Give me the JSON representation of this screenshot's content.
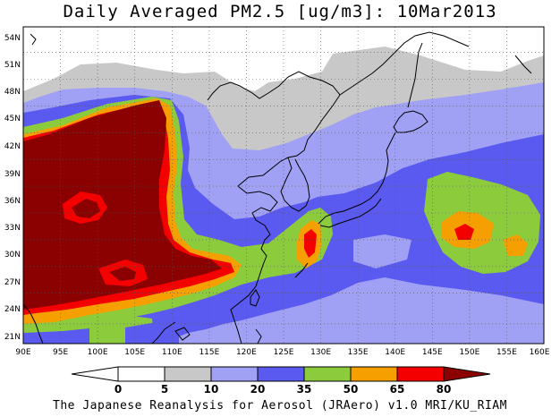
{
  "title": "Daily Averaged PM2.5 [ug/m3]: 10Mar2013",
  "footer": "The Japanese Reanalysis for Aerosol (JRAero) v1.0 MRI/KU_RIAM",
  "map": {
    "lon_range": [
      90,
      160
    ],
    "lat_range": [
      19.5,
      55
    ],
    "lon_ticks": [
      "90E",
      "95E",
      "100E",
      "105E",
      "110E",
      "115E",
      "120E",
      "125E",
      "130E",
      "135E",
      "140E",
      "145E",
      "150E",
      "155E",
      "160E"
    ],
    "lat_ticks": [
      "21N",
      "24N",
      "27N",
      "30N",
      "33N",
      "36N",
      "39N",
      "42N",
      "45N",
      "48N",
      "51N",
      "54N"
    ]
  },
  "colorbar": {
    "labels": [
      "0",
      "5",
      "10",
      "20",
      "35",
      "50",
      "65",
      "80"
    ],
    "colors": [
      "#ffffff",
      "#c8c8c8",
      "#a0a0f5",
      "#5a5af0",
      "#8ccc3c",
      "#f5a000",
      "#f50000",
      "#8b0000"
    ]
  },
  "palette": {
    "white": "#ffffff",
    "gray": "#c8c8c8",
    "lightblue": "#a0a0f5",
    "blue": "#5a5af0",
    "green": "#8ccc3c",
    "orange": "#f5a000",
    "red": "#f50000",
    "darkred": "#8b0000"
  }
}
